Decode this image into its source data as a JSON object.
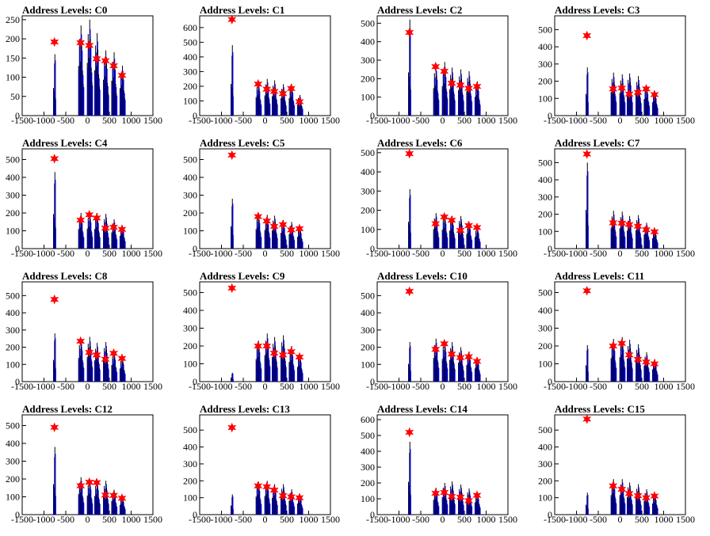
{
  "figure": {
    "title_prefix": "Address Levels: ",
    "x_ticks": [
      -1500,
      -1000,
      -500,
      0,
      500,
      1000,
      1500
    ],
    "x_tick_labels": [
      "-1500",
      "-1000",
      "-500",
      "0",
      "500",
      "1000",
      "1500"
    ],
    "xlim": [
      -1500,
      1500
    ],
    "colors": {
      "histogram_blue": "#0000ff",
      "histogram_black": "#000000",
      "marker_red": "#ff0000"
    }
  },
  "chart_data": [
    {
      "type": "histogram-peaks",
      "title": "Address Levels: C0",
      "ylim": [
        0,
        260
      ],
      "y_ticks": [
        0,
        50,
        100,
        150,
        200,
        250
      ],
      "peak_x": [
        -750,
        -150,
        50,
        220,
        420,
        610,
        800
      ],
      "spike_heights": [
        160,
        235,
        250,
        215,
        170,
        165,
        130
      ],
      "marker_values": [
        192,
        190,
        183,
        148,
        143,
        130,
        105
      ]
    },
    {
      "type": "histogram-peaks",
      "title": "Address Levels: C1",
      "ylim": [
        0,
        680
      ],
      "y_ticks": [
        0,
        100,
        200,
        300,
        400,
        500,
        600
      ],
      "peak_x": [
        -750,
        -150,
        50,
        220,
        420,
        610,
        800
      ],
      "spike_heights": [
        480,
        230,
        250,
        240,
        215,
        215,
        140
      ],
      "marker_values": [
        655,
        215,
        180,
        165,
        150,
        185,
        95
      ]
    },
    {
      "type": "histogram-peaks",
      "title": "Address Levels: C2",
      "ylim": [
        0,
        540
      ],
      "y_ticks": [
        0,
        100,
        200,
        300,
        400,
        500
      ],
      "peak_x": [
        -750,
        -150,
        50,
        220,
        420,
        610,
        800
      ],
      "spike_heights": [
        520,
        270,
        290,
        260,
        250,
        240,
        185
      ],
      "marker_values": [
        450,
        265,
        240,
        175,
        165,
        148,
        158
      ]
    },
    {
      "type": "histogram-peaks",
      "title": "Address Levels: C3",
      "ylim": [
        0,
        580
      ],
      "y_ticks": [
        0,
        100,
        200,
        300,
        400,
        500
      ],
      "peak_x": [
        -750,
        -150,
        50,
        220,
        420,
        610,
        800
      ],
      "spike_heights": [
        280,
        250,
        240,
        245,
        230,
        175,
        140
      ],
      "marker_values": [
        465,
        155,
        160,
        125,
        135,
        155,
        122
      ]
    },
    {
      "type": "histogram-peaks",
      "title": "Address Levels: C4",
      "ylim": [
        0,
        560
      ],
      "y_ticks": [
        0,
        100,
        200,
        300,
        400,
        500
      ],
      "peak_x": [
        -750,
        -150,
        50,
        220,
        420,
        610,
        800
      ],
      "spike_heights": [
        430,
        200,
        205,
        200,
        195,
        165,
        130
      ],
      "marker_values": [
        505,
        160,
        190,
        172,
        115,
        120,
        108
      ]
    },
    {
      "type": "histogram-peaks",
      "title": "Address Levels: C5",
      "ylim": [
        0,
        560
      ],
      "y_ticks": [
        0,
        100,
        200,
        300,
        400,
        500
      ],
      "peak_x": [
        -750,
        -150,
        50,
        220,
        420,
        610,
        800
      ],
      "spike_heights": [
        280,
        200,
        190,
        185,
        160,
        150,
        120
      ],
      "marker_values": [
        525,
        180,
        155,
        125,
        135,
        105,
        112
      ]
    },
    {
      "type": "histogram-peaks",
      "title": "Address Levels: C6",
      "ylim": [
        0,
        520
      ],
      "y_ticks": [
        0,
        100,
        200,
        300,
        400,
        500
      ],
      "peak_x": [
        -750,
        -150,
        50,
        220,
        420,
        610,
        800
      ],
      "spike_heights": [
        310,
        185,
        180,
        170,
        170,
        140,
        110
      ],
      "marker_values": [
        495,
        130,
        165,
        148,
        95,
        120,
        110
      ]
    },
    {
      "type": "histogram-peaks",
      "title": "Address Levels: C7",
      "ylim": [
        0,
        580
      ],
      "y_ticks": [
        0,
        100,
        200,
        300,
        400,
        500
      ],
      "peak_x": [
        -750,
        -150,
        50,
        220,
        420,
        610,
        800
      ],
      "spike_heights": [
        500,
        220,
        215,
        190,
        195,
        150,
        110
      ],
      "marker_values": [
        550,
        150,
        148,
        140,
        130,
        110,
        98
      ]
    },
    {
      "type": "histogram-peaks",
      "title": "Address Levels: C8",
      "ylim": [
        0,
        580
      ],
      "y_ticks": [
        0,
        100,
        200,
        300,
        400,
        500
      ],
      "peak_x": [
        -750,
        -150,
        50,
        220,
        420,
        610,
        800
      ],
      "spike_heights": [
        280,
        250,
        260,
        225,
        230,
        175,
        140
      ],
      "marker_values": [
        478,
        235,
        170,
        155,
        130,
        165,
        135
      ]
    },
    {
      "type": "histogram-peaks",
      "title": "Address Levels: C9",
      "ylim": [
        0,
        560
      ],
      "y_ticks": [
        0,
        100,
        200,
        300,
        400,
        500
      ],
      "peak_x": [
        -750,
        -150,
        50,
        220,
        420,
        610,
        800
      ],
      "spike_heights": [
        50,
        230,
        270,
        250,
        260,
        200,
        150
      ],
      "marker_values": [
        525,
        200,
        200,
        160,
        150,
        168,
        138
      ]
    },
    {
      "type": "histogram-peaks",
      "title": "Address Levels: C10",
      "ylim": [
        0,
        580
      ],
      "y_ticks": [
        0,
        100,
        200,
        300,
        400,
        500
      ],
      "peak_x": [
        -750,
        -150,
        50,
        220,
        420,
        610,
        800
      ],
      "spike_heights": [
        230,
        250,
        240,
        230,
        200,
        175,
        140
      ],
      "marker_values": [
        525,
        188,
        220,
        160,
        140,
        145,
        118
      ]
    },
    {
      "type": "histogram-peaks",
      "title": "Address Levels: C11",
      "ylim": [
        0,
        560
      ],
      "y_ticks": [
        0,
        100,
        200,
        300,
        400,
        500
      ],
      "peak_x": [
        -750,
        -150,
        50,
        220,
        420,
        610,
        800
      ],
      "spike_heights": [
        205,
        240,
        250,
        235,
        210,
        165,
        125
      ],
      "marker_values": [
        510,
        200,
        215,
        150,
        125,
        110,
        100
      ]
    },
    {
      "type": "histogram-peaks",
      "title": "Address Levels: C12",
      "ylim": [
        0,
        560
      ],
      "y_ticks": [
        0,
        100,
        200,
        300,
        400,
        500
      ],
      "peak_x": [
        -750,
        -150,
        50,
        220,
        420,
        610,
        800
      ],
      "spike_heights": [
        380,
        210,
        195,
        190,
        190,
        140,
        100
      ],
      "marker_values": [
        490,
        162,
        182,
        180,
        110,
        108,
        92
      ]
    },
    {
      "type": "histogram-peaks",
      "title": "Address Levels: C13",
      "ylim": [
        0,
        590
      ],
      "y_ticks": [
        0,
        100,
        200,
        300,
        400,
        500
      ],
      "peak_x": [
        -750,
        -150,
        50,
        220,
        420,
        610,
        800
      ],
      "spike_heights": [
        120,
        195,
        200,
        180,
        180,
        150,
        120
      ],
      "marker_values": [
        515,
        170,
        165,
        145,
        112,
        105,
        100
      ]
    },
    {
      "type": "histogram-peaks",
      "title": "Address Levels: C14",
      "ylim": [
        0,
        630
      ],
      "y_ticks": [
        0,
        100,
        200,
        300,
        400,
        500,
        600
      ],
      "peak_x": [
        -750,
        -150,
        50,
        220,
        420,
        610,
        800
      ],
      "spike_heights": [
        460,
        170,
        200,
        210,
        190,
        165,
        140
      ],
      "marker_values": [
        520,
        135,
        140,
        115,
        110,
        88,
        122
      ]
    },
    {
      "type": "histogram-peaks",
      "title": "Address Levels: C15",
      "ylim": [
        0,
        590
      ],
      "y_ticks": [
        0,
        100,
        200,
        300,
        400,
        500
      ],
      "peak_x": [
        -750,
        -150,
        50,
        220,
        420,
        610,
        800
      ],
      "spike_heights": [
        130,
        210,
        210,
        190,
        180,
        150,
        120
      ],
      "marker_values": [
        565,
        170,
        150,
        125,
        112,
        100,
        110
      ]
    }
  ]
}
